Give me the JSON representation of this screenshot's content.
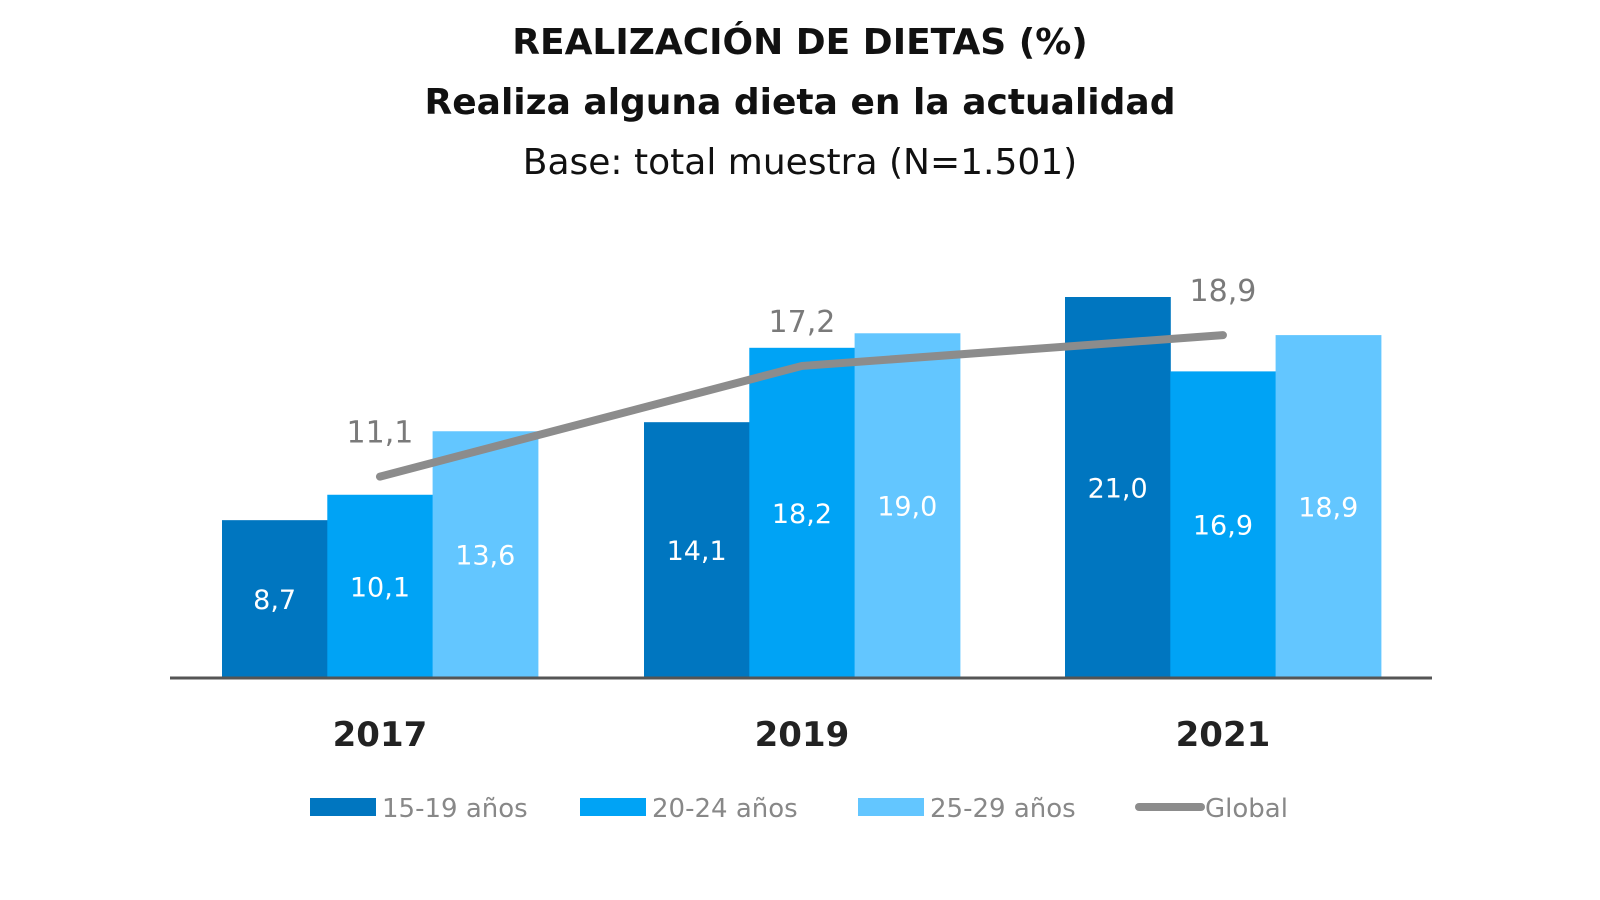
{
  "chart_data": {
    "type": "bar",
    "title": "REALIZACIÓN DE DIETAS (%)",
    "subtitle": "Realiza alguna dieta en la actualidad",
    "note": "Base: total muestra (N=1.501)",
    "categories": [
      "2017",
      "2019",
      "2021"
    ],
    "series": [
      {
        "name": "15-19 años",
        "values": [
          8.7,
          14.1,
          21.0
        ],
        "labels": [
          "8,7",
          "14,1",
          "21,0"
        ],
        "color": "#0076c0"
      },
      {
        "name": "20-24 años",
        "values": [
          10.1,
          18.2,
          16.9
        ],
        "labels": [
          "10,1",
          "18,2",
          "16,9"
        ],
        "color": "#00a3f5"
      },
      {
        "name": "25-29 años",
        "values": [
          13.6,
          19.0,
          18.9
        ],
        "labels": [
          "13,6",
          "19,0",
          "18,9"
        ],
        "color": "#63c6ff"
      }
    ],
    "line_series": {
      "name": "Global",
      "type": "line",
      "values": [
        11.1,
        17.2,
        18.9
      ],
      "labels": [
        "11,1",
        "17,2",
        "18,9"
      ],
      "color": "#8c8c8c"
    },
    "ylim": [
      0,
      21
    ],
    "grid": false,
    "legend": "bottom",
    "xlabel": "",
    "ylabel": ""
  }
}
